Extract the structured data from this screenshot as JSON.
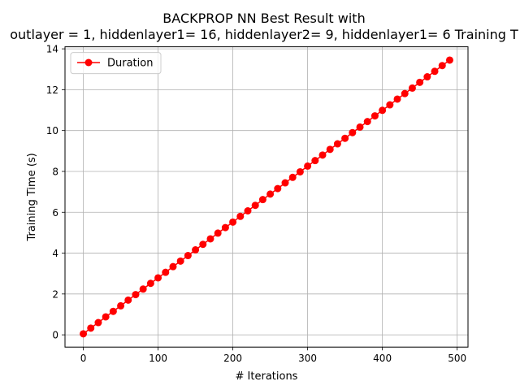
{
  "chart_data": {
    "type": "line",
    "title_line1": "BACKPROP NN Best Result with",
    "title_line2": "outlayer = 1, hiddenlayer1= 16, hiddenlayer2= 9, hiddenlayer1= 6 Training T",
    "xlabel": "# Iterations",
    "ylabel": "Training Time (s)",
    "xlim": [
      -24.5,
      514.5
    ],
    "ylim": [
      -0.6,
      14.1
    ],
    "xticks": [
      0,
      100,
      200,
      300,
      400,
      500
    ],
    "yticks": [
      0,
      2,
      4,
      6,
      8,
      10,
      12,
      14
    ],
    "grid": true,
    "legend_position": "upper-left",
    "series": [
      {
        "name": "Duration",
        "color": "#ff0000",
        "marker": "circle",
        "x": [
          0,
          10,
          20,
          30,
          40,
          50,
          60,
          70,
          80,
          90,
          100,
          110,
          120,
          130,
          140,
          150,
          160,
          170,
          180,
          190,
          200,
          210,
          220,
          230,
          240,
          250,
          260,
          270,
          280,
          290,
          300,
          310,
          320,
          330,
          340,
          350,
          360,
          370,
          380,
          390,
          400,
          410,
          420,
          430,
          440,
          450,
          460,
          470,
          480,
          490
        ],
        "y": [
          0.05,
          0.33,
          0.6,
          0.88,
          1.15,
          1.42,
          1.7,
          1.97,
          2.24,
          2.52,
          2.79,
          3.06,
          3.34,
          3.61,
          3.88,
          4.16,
          4.43,
          4.7,
          4.98,
          5.25,
          5.52,
          5.8,
          6.07,
          6.34,
          6.62,
          6.89,
          7.16,
          7.44,
          7.71,
          7.98,
          8.26,
          8.53,
          8.8,
          9.08,
          9.35,
          9.62,
          9.9,
          10.17,
          10.44,
          10.72,
          10.99,
          11.26,
          11.54,
          11.81,
          12.08,
          12.36,
          12.63,
          12.9,
          13.18,
          13.45
        ]
      }
    ]
  }
}
